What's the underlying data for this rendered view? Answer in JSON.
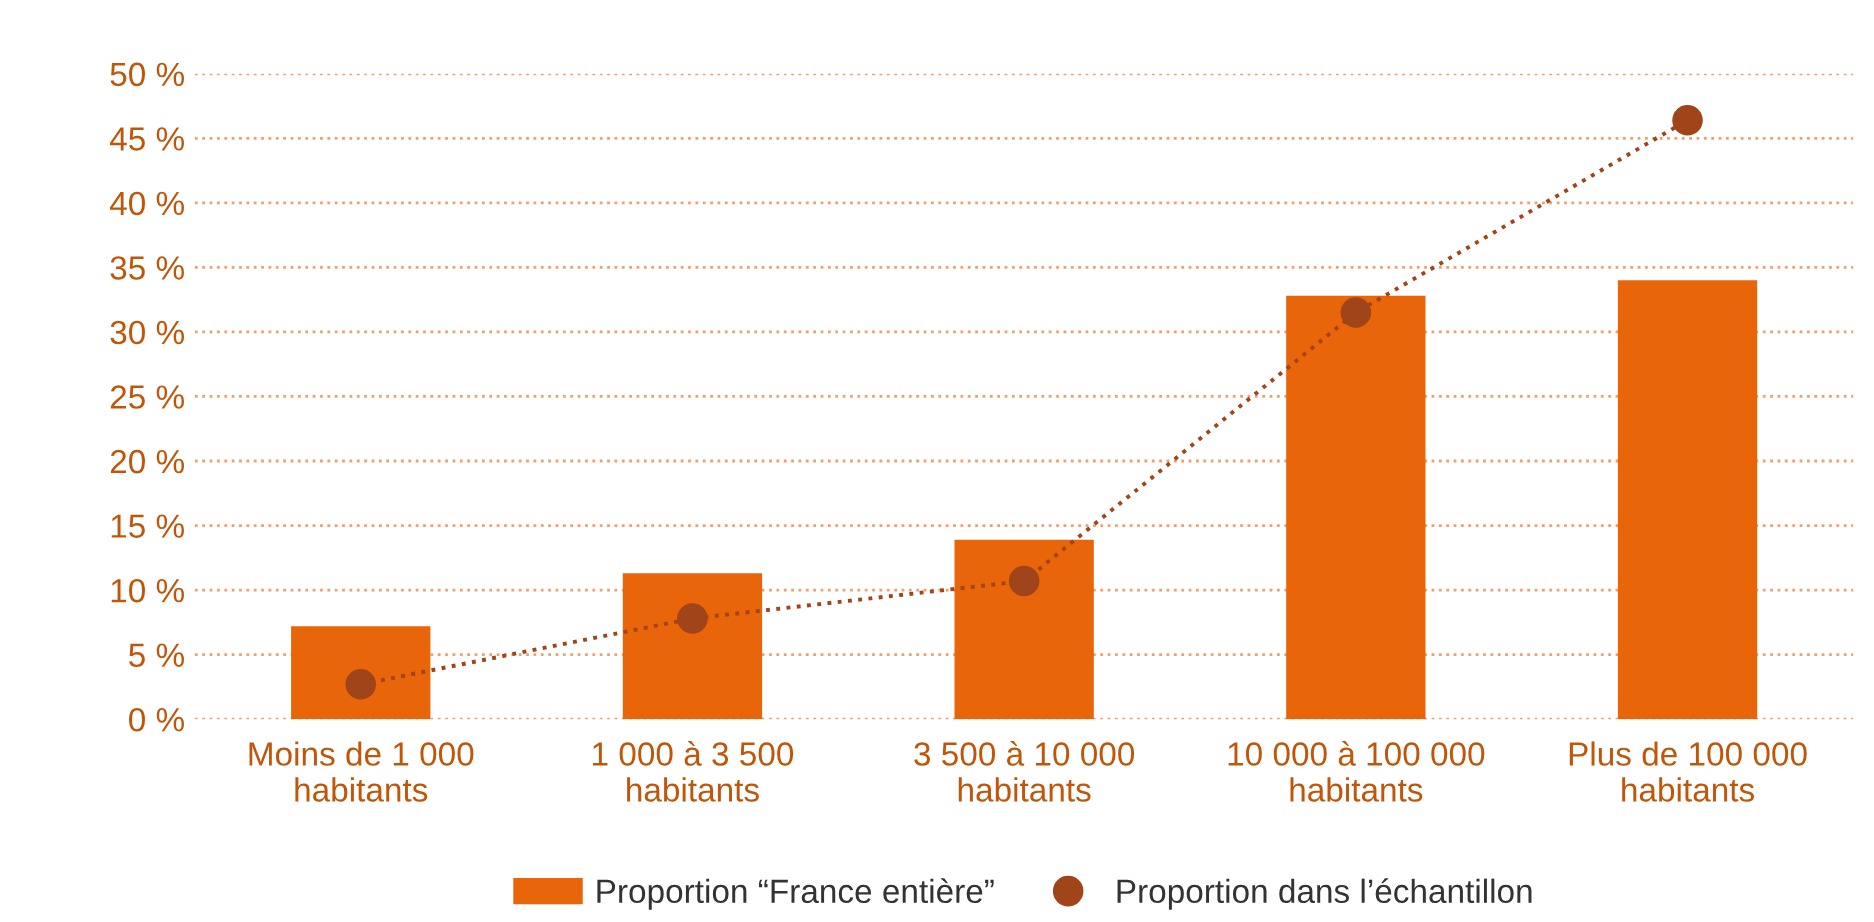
{
  "chart_data": {
    "type": "bar",
    "categories": [
      "Moins de 1 000\nhabitants",
      "1 000 à 3 500\nhabitants",
      "3 500 à 10 000\nhabitants",
      "10 000 à 100 000\nhabitants",
      "Plus de 100 000\nhabitants"
    ],
    "series": [
      {
        "name": "Proportion “France entière”",
        "color": "#e8650a",
        "values": [
          7.2,
          11.3,
          13.9,
          32.8,
          34.0
        ]
      },
      {
        "name": "Proportion dans l’échantillon",
        "type": "line",
        "color": "#a0441a",
        "marker": "circle",
        "line_style": "dotted",
        "values": [
          2.7,
          7.8,
          10.7,
          31.5,
          46.4
        ]
      }
    ],
    "ylim": [
      0,
      50
    ],
    "yticks": [
      {
        "value": 0,
        "label": "0 %"
      },
      {
        "value": 5,
        "label": "5 %"
      },
      {
        "value": 10,
        "label": "10 %"
      },
      {
        "value": 15,
        "label": "15 %"
      },
      {
        "value": 20,
        "label": "20 %"
      },
      {
        "value": 25,
        "label": "25 %"
      },
      {
        "value": 30,
        "label": "30 %"
      },
      {
        "value": 35,
        "label": "35 %"
      },
      {
        "value": 40,
        "label": "40 %"
      },
      {
        "value": 45,
        "label": "45 %"
      },
      {
        "value": 50,
        "label": "50 %"
      }
    ],
    "grid": "y",
    "legend": "bottom"
  }
}
